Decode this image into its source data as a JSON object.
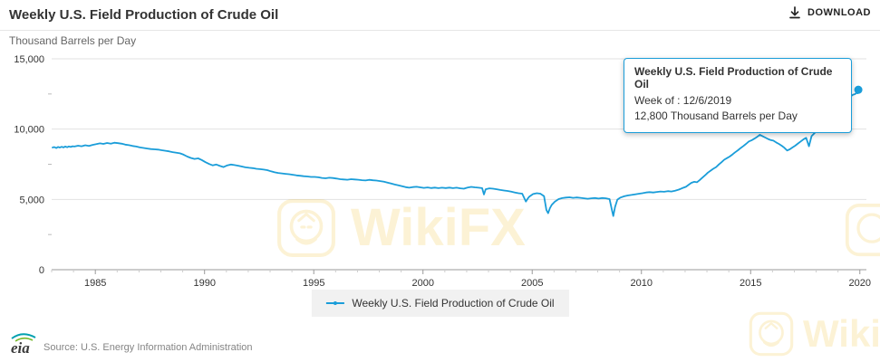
{
  "header": {
    "title": "Weekly U.S. Field Production of Crude Oil",
    "download_label": "DOWNLOAD"
  },
  "chart_data": {
    "type": "line",
    "title": "Weekly U.S. Field Production of Crude Oil",
    "xlabel": "",
    "ylabel": "Thousand Barrels per Day",
    "xlim": [
      1983,
      2020.3
    ],
    "ylim": [
      0,
      15000
    ],
    "grid": true,
    "legend_position": "bottom",
    "x_ticks": [
      {
        "value": 1985,
        "label": "1985"
      },
      {
        "value": 1990,
        "label": "1990"
      },
      {
        "value": 1995,
        "label": "1995"
      },
      {
        "value": 2000,
        "label": "2000"
      },
      {
        "value": 2005,
        "label": "2005"
      },
      {
        "value": 2010,
        "label": "2010"
      },
      {
        "value": 2015,
        "label": "2015"
      },
      {
        "value": 2020,
        "label": "2020"
      }
    ],
    "y_ticks": [
      {
        "value": 0,
        "label": "0"
      },
      {
        "value": 5000,
        "label": "5,000"
      },
      {
        "value": 10000,
        "label": "10,000"
      },
      {
        "value": 15000,
        "label": "15,000"
      }
    ],
    "series": [
      {
        "name": "Weekly U.S. Field Production of Crude Oil",
        "color": "#1a9dd9",
        "points": [
          [
            1983.04,
            8688
          ],
          [
            1983.12,
            8720
          ],
          [
            1983.21,
            8650
          ],
          [
            1983.29,
            8730
          ],
          [
            1983.37,
            8690
          ],
          [
            1983.46,
            8740
          ],
          [
            1983.54,
            8700
          ],
          [
            1983.62,
            8760
          ],
          [
            1983.71,
            8710
          ],
          [
            1983.79,
            8770
          ],
          [
            1983.87,
            8730
          ],
          [
            1983.96,
            8780
          ],
          [
            1984.04,
            8760
          ],
          [
            1984.21,
            8820
          ],
          [
            1984.37,
            8780
          ],
          [
            1984.54,
            8850
          ],
          [
            1984.71,
            8810
          ],
          [
            1984.87,
            8880
          ],
          [
            1985.04,
            8930
          ],
          [
            1985.21,
            8990
          ],
          [
            1985.37,
            8950
          ],
          [
            1985.54,
            9010
          ],
          [
            1985.71,
            8970
          ],
          [
            1985.87,
            9030
          ],
          [
            1986.04,
            9000
          ],
          [
            1986.21,
            8960
          ],
          [
            1986.37,
            8900
          ],
          [
            1986.54,
            8860
          ],
          [
            1986.71,
            8800
          ],
          [
            1986.87,
            8760
          ],
          [
            1987.04,
            8700
          ],
          [
            1987.21,
            8660
          ],
          [
            1987.37,
            8620
          ],
          [
            1987.54,
            8580
          ],
          [
            1987.71,
            8560
          ],
          [
            1987.87,
            8540
          ],
          [
            1988.04,
            8500
          ],
          [
            1988.21,
            8460
          ],
          [
            1988.37,
            8420
          ],
          [
            1988.54,
            8360
          ],
          [
            1988.71,
            8320
          ],
          [
            1988.87,
            8280
          ],
          [
            1989.04,
            8180
          ],
          [
            1989.21,
            8050
          ],
          [
            1989.37,
            7950
          ],
          [
            1989.54,
            7880
          ],
          [
            1989.71,
            7920
          ],
          [
            1989.87,
            7800
          ],
          [
            1990.04,
            7650
          ],
          [
            1990.21,
            7520
          ],
          [
            1990.37,
            7420
          ],
          [
            1990.54,
            7480
          ],
          [
            1990.71,
            7380
          ],
          [
            1990.87,
            7300
          ],
          [
            1991.04,
            7420
          ],
          [
            1991.21,
            7480
          ],
          [
            1991.37,
            7440
          ],
          [
            1991.54,
            7400
          ],
          [
            1991.71,
            7340
          ],
          [
            1991.87,
            7280
          ],
          [
            1992.04,
            7250
          ],
          [
            1992.21,
            7220
          ],
          [
            1992.37,
            7180
          ],
          [
            1992.54,
            7150
          ],
          [
            1992.71,
            7120
          ],
          [
            1992.87,
            7080
          ],
          [
            1993.04,
            7000
          ],
          [
            1993.21,
            6930
          ],
          [
            1993.37,
            6880
          ],
          [
            1993.54,
            6850
          ],
          [
            1993.71,
            6820
          ],
          [
            1993.87,
            6790
          ],
          [
            1994.04,
            6750
          ],
          [
            1994.21,
            6710
          ],
          [
            1994.37,
            6680
          ],
          [
            1994.54,
            6650
          ],
          [
            1994.71,
            6630
          ],
          [
            1994.87,
            6600
          ],
          [
            1995.04,
            6600
          ],
          [
            1995.21,
            6570
          ],
          [
            1995.37,
            6530
          ],
          [
            1995.54,
            6500
          ],
          [
            1995.71,
            6540
          ],
          [
            1995.87,
            6520
          ],
          [
            1996.04,
            6480
          ],
          [
            1996.21,
            6440
          ],
          [
            1996.37,
            6420
          ],
          [
            1996.54,
            6400
          ],
          [
            1996.71,
            6440
          ],
          [
            1996.87,
            6420
          ],
          [
            1997.04,
            6400
          ],
          [
            1997.21,
            6370
          ],
          [
            1997.37,
            6350
          ],
          [
            1997.54,
            6390
          ],
          [
            1997.71,
            6360
          ],
          [
            1997.87,
            6340
          ],
          [
            1998.04,
            6300
          ],
          [
            1998.21,
            6260
          ],
          [
            1998.37,
            6200
          ],
          [
            1998.54,
            6130
          ],
          [
            1998.71,
            6060
          ],
          [
            1998.87,
            6000
          ],
          [
            1999.04,
            5940
          ],
          [
            1999.21,
            5870
          ],
          [
            1999.37,
            5830
          ],
          [
            1999.54,
            5880
          ],
          [
            1999.71,
            5900
          ],
          [
            1999.87,
            5860
          ],
          [
            2000.04,
            5820
          ],
          [
            2000.21,
            5850
          ],
          [
            2000.37,
            5810
          ],
          [
            2000.54,
            5840
          ],
          [
            2000.71,
            5800
          ],
          [
            2000.87,
            5830
          ],
          [
            2001.04,
            5810
          ],
          [
            2001.21,
            5840
          ],
          [
            2001.37,
            5800
          ],
          [
            2001.54,
            5830
          ],
          [
            2001.71,
            5790
          ],
          [
            2001.87,
            5760
          ],
          [
            2002.04,
            5840
          ],
          [
            2002.21,
            5890
          ],
          [
            2002.37,
            5860
          ],
          [
            2002.54,
            5830
          ],
          [
            2002.71,
            5800
          ],
          [
            2002.79,
            5350
          ],
          [
            2002.87,
            5720
          ],
          [
            2003.04,
            5790
          ],
          [
            2003.21,
            5760
          ],
          [
            2003.37,
            5720
          ],
          [
            2003.54,
            5670
          ],
          [
            2003.71,
            5630
          ],
          [
            2003.87,
            5600
          ],
          [
            2004.04,
            5550
          ],
          [
            2004.21,
            5490
          ],
          [
            2004.37,
            5440
          ],
          [
            2004.54,
            5410
          ],
          [
            2004.71,
            4850
          ],
          [
            2004.79,
            5050
          ],
          [
            2004.87,
            5200
          ],
          [
            2005.04,
            5380
          ],
          [
            2005.21,
            5440
          ],
          [
            2005.37,
            5410
          ],
          [
            2005.54,
            5230
          ],
          [
            2005.65,
            4250
          ],
          [
            2005.73,
            4020
          ],
          [
            2005.81,
            4380
          ],
          [
            2005.9,
            4620
          ],
          [
            2006.04,
            4850
          ],
          [
            2006.21,
            5020
          ],
          [
            2006.37,
            5090
          ],
          [
            2006.54,
            5130
          ],
          [
            2006.71,
            5150
          ],
          [
            2006.87,
            5110
          ],
          [
            2007.04,
            5140
          ],
          [
            2007.21,
            5110
          ],
          [
            2007.37,
            5080
          ],
          [
            2007.54,
            5050
          ],
          [
            2007.71,
            5080
          ],
          [
            2007.87,
            5100
          ],
          [
            2008.04,
            5060
          ],
          [
            2008.21,
            5100
          ],
          [
            2008.37,
            5080
          ],
          [
            2008.54,
            5020
          ],
          [
            2008.67,
            4100
          ],
          [
            2008.71,
            3820
          ],
          [
            2008.79,
            4450
          ],
          [
            2008.9,
            4980
          ],
          [
            2009.04,
            5130
          ],
          [
            2009.21,
            5220
          ],
          [
            2009.37,
            5280
          ],
          [
            2009.54,
            5320
          ],
          [
            2009.71,
            5360
          ],
          [
            2009.87,
            5400
          ],
          [
            2010.04,
            5440
          ],
          [
            2010.21,
            5490
          ],
          [
            2010.37,
            5520
          ],
          [
            2010.54,
            5490
          ],
          [
            2010.71,
            5530
          ],
          [
            2010.87,
            5560
          ],
          [
            2011.04,
            5540
          ],
          [
            2011.21,
            5590
          ],
          [
            2011.37,
            5560
          ],
          [
            2011.54,
            5620
          ],
          [
            2011.71,
            5700
          ],
          [
            2011.87,
            5800
          ],
          [
            2012.04,
            5900
          ],
          [
            2012.17,
            6050
          ],
          [
            2012.29,
            6180
          ],
          [
            2012.42,
            6250
          ],
          [
            2012.54,
            6220
          ],
          [
            2012.67,
            6380
          ],
          [
            2012.79,
            6550
          ],
          [
            2012.92,
            6720
          ],
          [
            2013.04,
            6900
          ],
          [
            2013.17,
            7050
          ],
          [
            2013.29,
            7180
          ],
          [
            2013.42,
            7300
          ],
          [
            2013.54,
            7480
          ],
          [
            2013.67,
            7650
          ],
          [
            2013.79,
            7820
          ],
          [
            2013.92,
            7940
          ],
          [
            2014.04,
            8050
          ],
          [
            2014.17,
            8200
          ],
          [
            2014.29,
            8350
          ],
          [
            2014.42,
            8500
          ],
          [
            2014.54,
            8650
          ],
          [
            2014.67,
            8800
          ],
          [
            2014.79,
            8950
          ],
          [
            2014.92,
            9120
          ],
          [
            2015.04,
            9200
          ],
          [
            2015.17,
            9320
          ],
          [
            2015.29,
            9440
          ],
          [
            2015.42,
            9600
          ],
          [
            2015.54,
            9500
          ],
          [
            2015.67,
            9400
          ],
          [
            2015.79,
            9300
          ],
          [
            2015.92,
            9220
          ],
          [
            2016.04,
            9180
          ],
          [
            2016.17,
            9050
          ],
          [
            2016.29,
            8950
          ],
          [
            2016.42,
            8820
          ],
          [
            2016.54,
            8680
          ],
          [
            2016.67,
            8480
          ],
          [
            2016.79,
            8560
          ],
          [
            2016.92,
            8700
          ],
          [
            2017.04,
            8820
          ],
          [
            2017.17,
            8980
          ],
          [
            2017.29,
            9120
          ],
          [
            2017.42,
            9280
          ],
          [
            2017.54,
            9380
          ],
          [
            2017.67,
            8780
          ],
          [
            2017.79,
            9500
          ],
          [
            2017.92,
            9700
          ],
          [
            2018.04,
            9920
          ],
          [
            2018.17,
            10250
          ],
          [
            2018.29,
            10470
          ],
          [
            2018.42,
            10740
          ],
          [
            2018.54,
            10960
          ],
          [
            2018.67,
            11100
          ],
          [
            2018.79,
            11400
          ],
          [
            2018.92,
            11700
          ],
          [
            2019.04,
            11880
          ],
          [
            2019.12,
            11950
          ],
          [
            2019.21,
            12060
          ],
          [
            2019.29,
            12150
          ],
          [
            2019.37,
            12120
          ],
          [
            2019.46,
            12240
          ],
          [
            2019.52,
            11320
          ],
          [
            2019.6,
            12350
          ],
          [
            2019.69,
            12450
          ],
          [
            2019.77,
            12480
          ],
          [
            2019.85,
            12580
          ],
          [
            2019.9,
            12550
          ],
          [
            2019.93,
            12800
          ]
        ]
      }
    ]
  },
  "tooltip": {
    "title": "Weekly U.S. Field Production of Crude Oil",
    "week_line": "Week of : 12/6/2019",
    "value_line": "12,800 Thousand Barrels per Day"
  },
  "legend": {
    "label": "Weekly U.S. Field Production of Crude Oil"
  },
  "footer": {
    "source": "Source: U.S. Energy Information Administration",
    "logo_text": "eia"
  },
  "watermark": {
    "text": "WikiFX",
    "color": "#f0b90b"
  },
  "colors": {
    "line": "#1a9dd9",
    "grid": "#e2e2e2",
    "axis": "#9a9a9a"
  }
}
